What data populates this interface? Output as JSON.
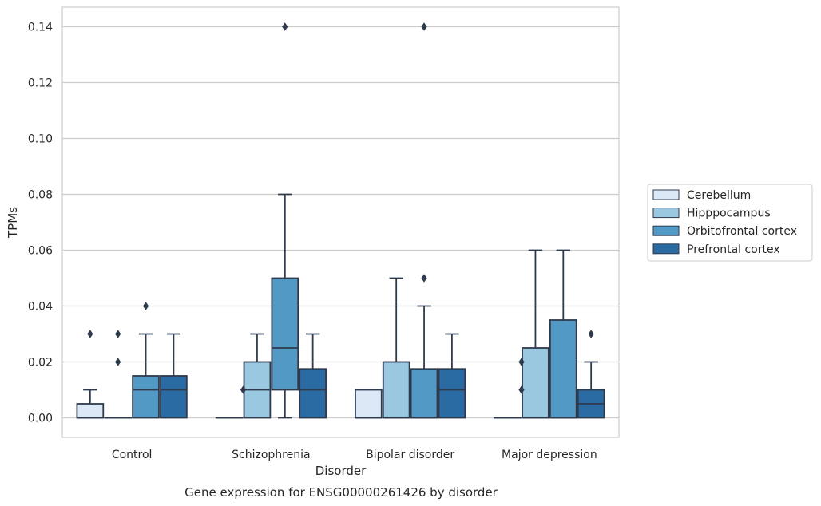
{
  "chart_data": {
    "type": "boxplot",
    "title": "Gene expression for ENSG00000261426 by disorder",
    "xlabel": "Disorder",
    "ylabel": "TPMs",
    "ylim": [
      -0.007,
      0.147
    ],
    "yticks": [
      "0.00",
      "0.02",
      "0.04",
      "0.06",
      "0.08",
      "0.10",
      "0.12",
      "0.14"
    ],
    "grid": "horizontal",
    "legend_placement": "right",
    "categories": [
      "Control",
      "Schizophrenia",
      "Bipolar disorder",
      "Major depression"
    ],
    "series": [
      {
        "name": "Cerebellum",
        "color": "#dbe9f6",
        "boxes": [
          {
            "q1": 0.0,
            "median": 0.0,
            "q3": 0.005,
            "whisker_low": 0.0,
            "whisker_high": 0.01,
            "outliers": [
              0.03
            ]
          },
          {
            "q1": 0.0,
            "median": 0.0,
            "q3": 0.0,
            "whisker_low": 0.0,
            "whisker_high": 0.0,
            "outliers": []
          },
          {
            "q1": 0.0,
            "median": 0.0,
            "q3": 0.01,
            "whisker_low": 0.0,
            "whisker_high": 0.01,
            "outliers": []
          },
          {
            "q1": 0.0,
            "median": 0.0,
            "q3": 0.0,
            "whisker_low": 0.0,
            "whisker_high": 0.0,
            "outliers": []
          }
        ]
      },
      {
        "name": "Hipppocampus",
        "color": "#9ac8e0",
        "boxes": [
          {
            "q1": 0.0,
            "median": 0.0,
            "q3": 0.0,
            "whisker_low": 0.0,
            "whisker_high": 0.0,
            "outliers": [
              0.02,
              0.03
            ]
          },
          {
            "q1": 0.0,
            "median": 0.01,
            "q3": 0.02,
            "whisker_low": 0.0,
            "whisker_high": 0.03,
            "outliers": []
          },
          {
            "q1": 0.0,
            "median": 0.0,
            "q3": 0.02,
            "whisker_low": 0.0,
            "whisker_high": 0.05,
            "outliers": []
          },
          {
            "q1": 0.0,
            "median": 0.0,
            "q3": 0.025,
            "whisker_low": 0.0,
            "whisker_high": 0.06,
            "outliers": []
          }
        ]
      },
      {
        "name": "Orbitofrontal cortex",
        "color": "#5399c6",
        "boxes": [
          {
            "q1": 0.0,
            "median": 0.01,
            "q3": 0.015,
            "whisker_low": 0.0,
            "whisker_high": 0.03,
            "outliers": [
              0.04
            ]
          },
          {
            "q1": 0.01,
            "median": 0.025,
            "q3": 0.05,
            "whisker_low": 0.0,
            "whisker_high": 0.08,
            "outliers": [
              0.14
            ]
          },
          {
            "q1": 0.0,
            "median": 0.0,
            "q3": 0.0175,
            "whisker_low": 0.0,
            "whisker_high": 0.04,
            "outliers": [
              0.05,
              0.14
            ]
          },
          {
            "q1": 0.0,
            "median": 0.0,
            "q3": 0.035,
            "whisker_low": 0.0,
            "whisker_high": 0.06,
            "outliers": []
          }
        ]
      },
      {
        "name": "Prefrontal cortex",
        "color": "#2b6ba4",
        "boxes": [
          {
            "q1": 0.0,
            "median": 0.01,
            "q3": 0.015,
            "whisker_low": 0.0,
            "whisker_high": 0.03,
            "outliers": []
          },
          {
            "q1": 0.0,
            "median": 0.01,
            "q3": 0.0175,
            "whisker_low": 0.0,
            "whisker_high": 0.03,
            "outliers": []
          },
          {
            "q1": 0.0,
            "median": 0.01,
            "q3": 0.0175,
            "whisker_low": 0.0,
            "whisker_high": 0.03,
            "outliers": []
          },
          {
            "q1": 0.0,
            "median": 0.005,
            "q3": 0.01,
            "whisker_low": 0.0,
            "whisker_high": 0.02,
            "outliers": [
              0.03
            ]
          }
        ]
      }
    ],
    "extra_outliers": [
      {
        "category": 1,
        "series": 1,
        "value": 0.01
      },
      {
        "category": 3,
        "series": 1,
        "value": 0.01
      },
      {
        "category": 3,
        "series": 1,
        "value": 0.02
      }
    ]
  }
}
